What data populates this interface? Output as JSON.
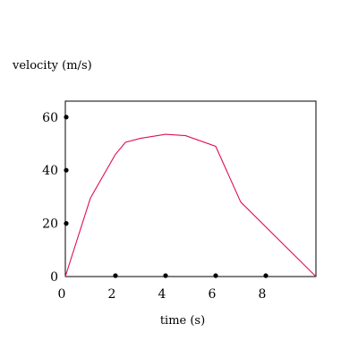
{
  "chart_data": {
    "type": "line",
    "xlabel": "time (s)",
    "ylabel": "velocity (m/s)",
    "xlim": [
      0,
      10
    ],
    "ylim": [
      0,
      66
    ],
    "x_ticks": [
      "0",
      "2",
      "4",
      "6",
      "8"
    ],
    "x_tick_values": [
      0,
      2,
      4,
      6,
      8
    ],
    "y_ticks": [
      "0",
      "20",
      "40",
      "60"
    ],
    "y_tick_values": [
      0,
      20,
      40,
      60
    ],
    "grid": false,
    "series": [
      {
        "x": [
          0,
          1,
          2,
          2.4,
          3,
          4,
          4.8,
          6,
          7,
          10
        ],
        "y": [
          0,
          29.5,
          46,
          50.5,
          52,
          53.5,
          53,
          49,
          28,
          0
        ],
        "color": "#e0104f"
      }
    ],
    "x_axis_markers": [
      2,
      4,
      6,
      8
    ],
    "y_axis_markers": [
      20,
      40,
      60
    ],
    "marker_color": "#000000"
  }
}
